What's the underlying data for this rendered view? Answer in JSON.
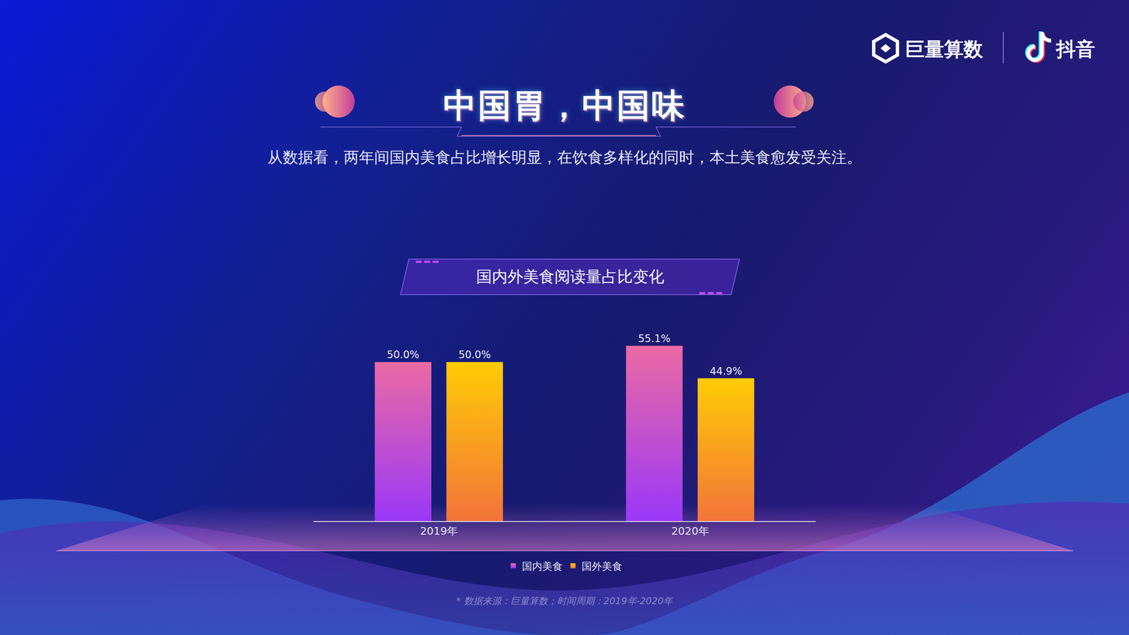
{
  "page": {
    "headline": "中国胃，中国味",
    "subtitle": "从数据看，两年间国内美食占比增长明显，在饮食多样化的同时，本土美食愈发受关注。",
    "logos": [
      "巨量算数",
      "抖音"
    ],
    "source": "* 数据来源：巨量算数；时间周期：2019年-2020年"
  },
  "chart_data": {
    "type": "bar",
    "title": "国内外美食阅读量占比变化",
    "categories": [
      "2019年",
      "2020年"
    ],
    "series": [
      {
        "name": "国内美食",
        "color": "#ea6aa3",
        "values": [
          50.0,
          55.1
        ],
        "value_labels": [
          "50.0%",
          "55.1%"
        ]
      },
      {
        "name": "国外美食",
        "color": "#ffcc05",
        "values": [
          50.0,
          44.9
        ],
        "value_labels": [
          "50.0%",
          "44.9%"
        ]
      }
    ],
    "ylim": [
      0,
      60
    ],
    "grid": false,
    "legend": "bottom",
    "data_labels": true,
    "tick_labels": "x"
  }
}
